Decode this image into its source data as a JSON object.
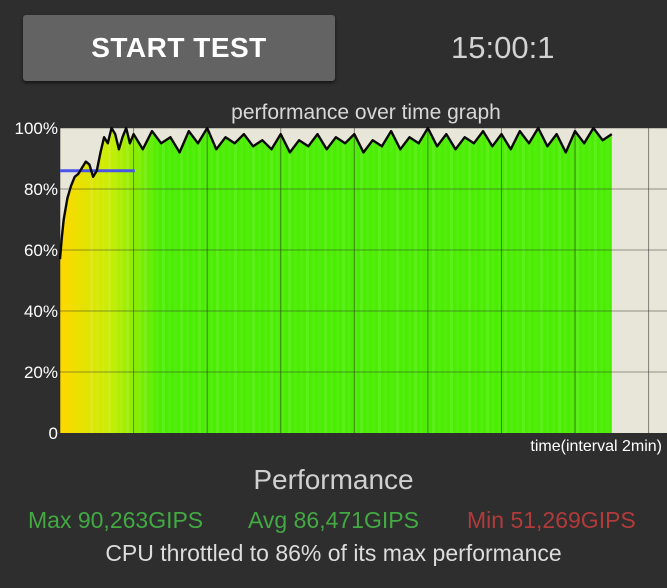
{
  "header": {
    "start_button_label": "START TEST",
    "timer": "15:00:1"
  },
  "chart_data": {
    "type": "area",
    "title": "performance over time graph",
    "xlabel": "time(interval 2min)",
    "ylabel": "",
    "yticks": [
      "0",
      "20%",
      "40%",
      "60%",
      "80%",
      "100%"
    ],
    "ylim": [
      0,
      100
    ],
    "x_unit": "minutes",
    "xlim": [
      0,
      16.5
    ],
    "plot_background": "#e8e6d8",
    "grid": true,
    "fill_gradient": [
      "#ffd800",
      "#c8ee00",
      "#4aee00"
    ],
    "line_color": "#0a0a0a",
    "reference_line": {
      "y": 86,
      "x_range": [
        0,
        1
      ],
      "color": "#4a55e8"
    },
    "x": [
      0,
      0.05,
      0.1,
      0.2,
      0.3,
      0.4,
      0.5,
      0.6,
      0.7,
      0.8,
      0.9,
      1.0,
      1.1,
      1.2,
      1.3,
      1.4,
      1.5,
      1.6,
      1.7,
      1.8,
      1.9,
      2.0,
      2.25,
      2.5,
      2.75,
      3.0,
      3.25,
      3.5,
      3.75,
      4.0,
      4.25,
      4.5,
      4.75,
      5.0,
      5.25,
      5.5,
      5.75,
      6.0,
      6.25,
      6.5,
      6.75,
      7.0,
      7.25,
      7.5,
      7.75,
      8.0,
      8.25,
      8.5,
      8.75,
      9.0,
      9.25,
      9.5,
      9.75,
      10.0,
      10.25,
      10.5,
      10.75,
      11.0,
      11.25,
      11.5,
      11.75,
      12.0,
      12.25,
      12.5,
      12.75,
      13.0,
      13.25,
      13.5,
      13.75,
      14.0,
      14.25,
      14.5,
      14.75,
      15.0
    ],
    "values": [
      57,
      64,
      70,
      77,
      81,
      84,
      85,
      87,
      89,
      88,
      84,
      86,
      92,
      97,
      95,
      100,
      98,
      93,
      97,
      100,
      95,
      98,
      93,
      99,
      95,
      97,
      92,
      99,
      95,
      100,
      93,
      97,
      95,
      98,
      94,
      96,
      93,
      98,
      92,
      96,
      94,
      98,
      93,
      97,
      95,
      98,
      92,
      96,
      94,
      99,
      93,
      97,
      95,
      100,
      94,
      98,
      93,
      97,
      95,
      99,
      94,
      98,
      93,
      99,
      95,
      100,
      94,
      98,
      92,
      99,
      95,
      100,
      96,
      98
    ]
  },
  "summary": {
    "title": "Performance",
    "max": "Max 90,263GIPS",
    "avg": "Avg 86,471GIPS",
    "min": "Min 51,269GIPS",
    "throttle_message": "CPU throttled to 86% of its max performance"
  }
}
